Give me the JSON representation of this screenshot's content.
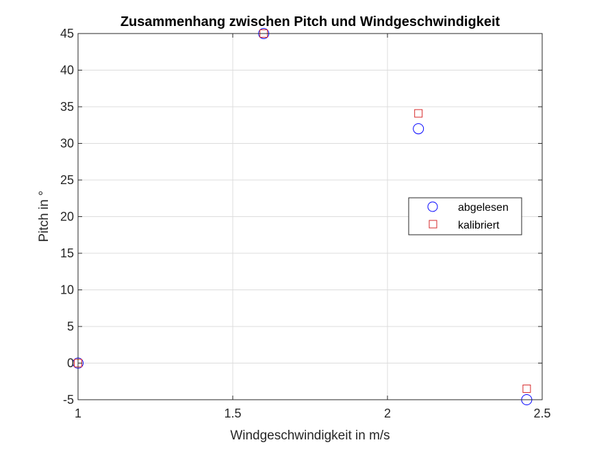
{
  "chart_data": {
    "type": "scatter",
    "title": "Zusammenhang zwischen Pitch und Windgeschwindigkeit",
    "xlabel": "Windgeschwindigkeit in m/s",
    "ylabel": "Pitch in °",
    "xlim": [
      1,
      2.5
    ],
    "ylim": [
      -5,
      45
    ],
    "xticks": [
      1,
      1.5,
      2,
      2.5
    ],
    "xtick_labels": [
      "1",
      "1.5",
      "2",
      "2.5"
    ],
    "yticks": [
      -5,
      0,
      5,
      10,
      15,
      20,
      25,
      30,
      35,
      40,
      45
    ],
    "ytick_labels": [
      "-5",
      "0",
      "5",
      "10",
      "15",
      "20",
      "25",
      "30",
      "35",
      "40",
      "45"
    ],
    "grid": true,
    "legend_position": "right",
    "series": [
      {
        "name": "abgelesen",
        "marker": "circle",
        "color": "#0000ff",
        "x": [
          1.0,
          1.6,
          2.1,
          2.45
        ],
        "y": [
          0,
          45,
          32,
          -5
        ]
      },
      {
        "name": "kalibriert",
        "marker": "square",
        "color": "#d62728",
        "x": [
          1.0,
          1.6,
          2.1,
          2.45
        ],
        "y": [
          0,
          45,
          34.1,
          -3.5
        ]
      }
    ]
  }
}
